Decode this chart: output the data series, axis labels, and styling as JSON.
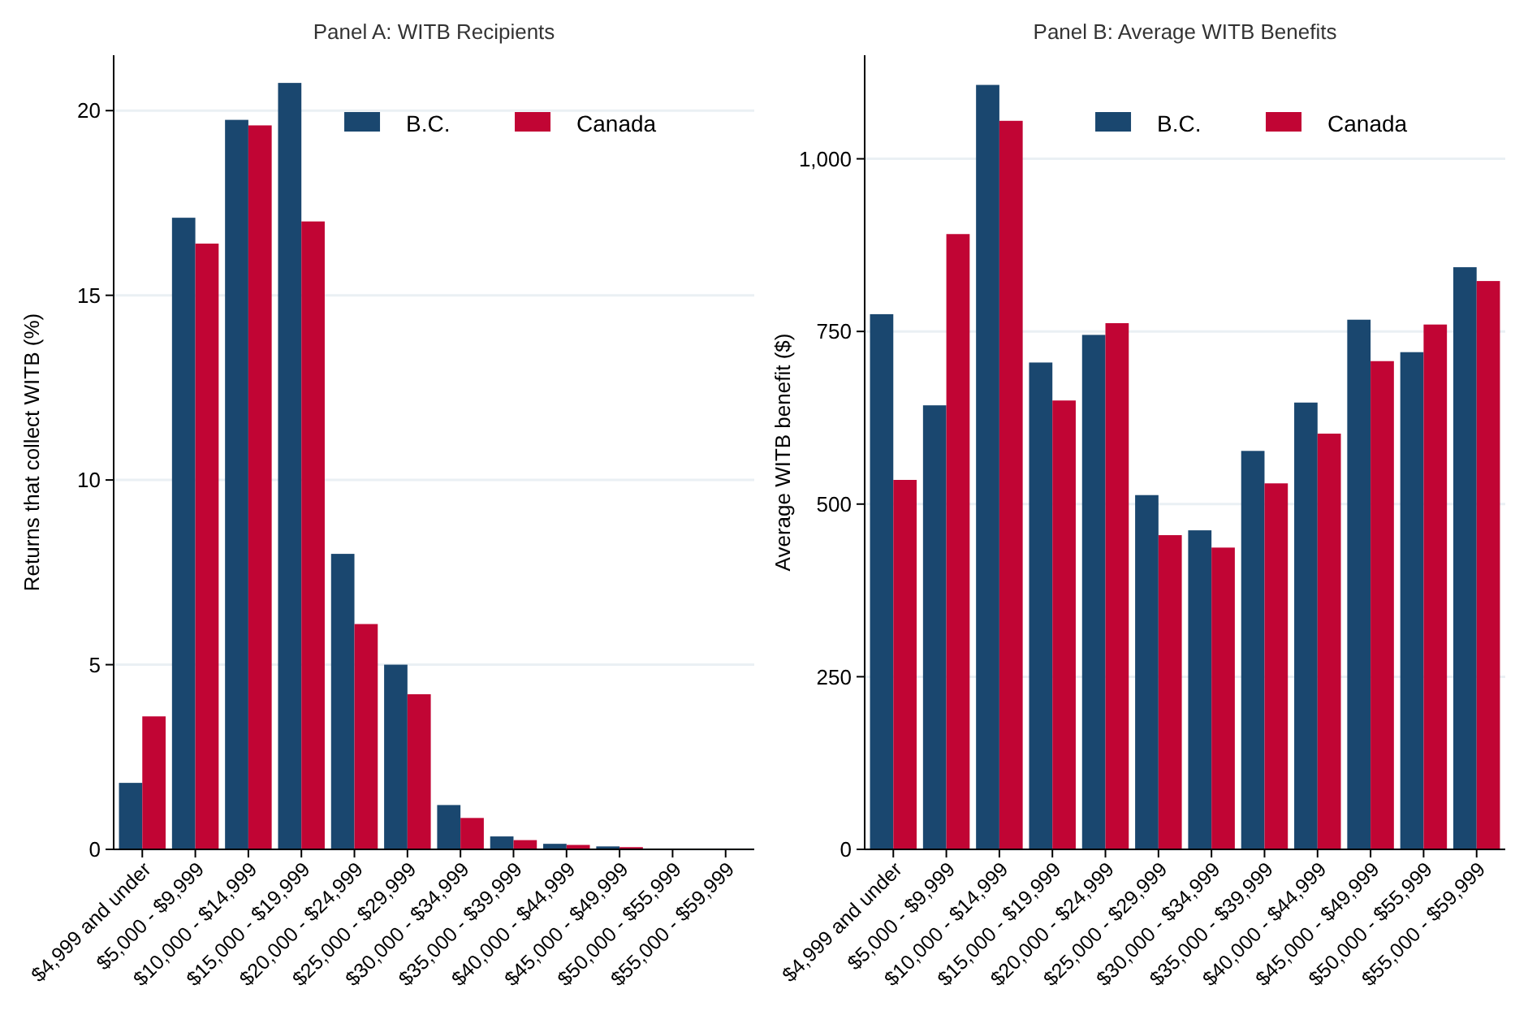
{
  "chart_data": [
    {
      "type": "bar",
      "title": "Panel A: WITB Recipients",
      "ylabel": "Returns that collect WITB (%)",
      "categories": [
        "$4,999 and under",
        "$5,000 - $9,999",
        "$10,000 - $14,999",
        "$15,000 - $19,999",
        "$20,000 - $24,999",
        "$25,000 - $29,999",
        "$30,000 - $34,999",
        "$35,000 - $39,999",
        "$40,000 - $44,999",
        "$45,000 - $49,999",
        "$50,000 - $55,999",
        "$55,000 - $59,999"
      ],
      "series": [
        {
          "name": "B.C.",
          "color": "#1a476f",
          "values": [
            1.8,
            17.1,
            19.75,
            20.75,
            8.0,
            5.0,
            1.2,
            0.35,
            0.15,
            0.08,
            null,
            0.02
          ]
        },
        {
          "name": "Canada",
          "color": "#c10534",
          "values": [
            3.6,
            16.4,
            19.6,
            17.0,
            6.1,
            4.2,
            0.85,
            0.25,
            0.12,
            0.06,
            null,
            null
          ]
        }
      ],
      "ylim": [
        0,
        21.5
      ],
      "yticks": [
        0,
        5,
        10,
        15,
        20
      ],
      "grid": "y",
      "legend": "top right"
    },
    {
      "type": "bar",
      "title": "Panel B: Average WITB Benefits",
      "ylabel": "Average WITB benefit ($)",
      "categories": [
        "$4,999 and under",
        "$5,000 - $9,999",
        "$10,000 - $14,999",
        "$15,000 - $19,999",
        "$20,000 - $24,999",
        "$25,000 - $29,999",
        "$30,000 - $34,999",
        "$35,000 - $39,999",
        "$40,000 - $44,999",
        "$45,000 - $49,999",
        "$50,000 - $55,999",
        "$55,000 - $59,999"
      ],
      "series": [
        {
          "name": "B.C.",
          "color": "#1a476f",
          "values": [
            775,
            643,
            1107,
            705,
            745,
            513,
            462,
            577,
            647,
            767,
            720,
            843
          ]
        },
        {
          "name": "Canada",
          "color": "#c10534",
          "values": [
            535,
            891,
            1055,
            650,
            762,
            455,
            437,
            530,
            602,
            707,
            760,
            823
          ]
        }
      ],
      "ylim": [
        0,
        1150
      ],
      "yticks": [
        0,
        250,
        500,
        750,
        {
          "value": 1000,
          "label": "1,000"
        }
      ],
      "grid": "y",
      "legend": "top right"
    }
  ]
}
